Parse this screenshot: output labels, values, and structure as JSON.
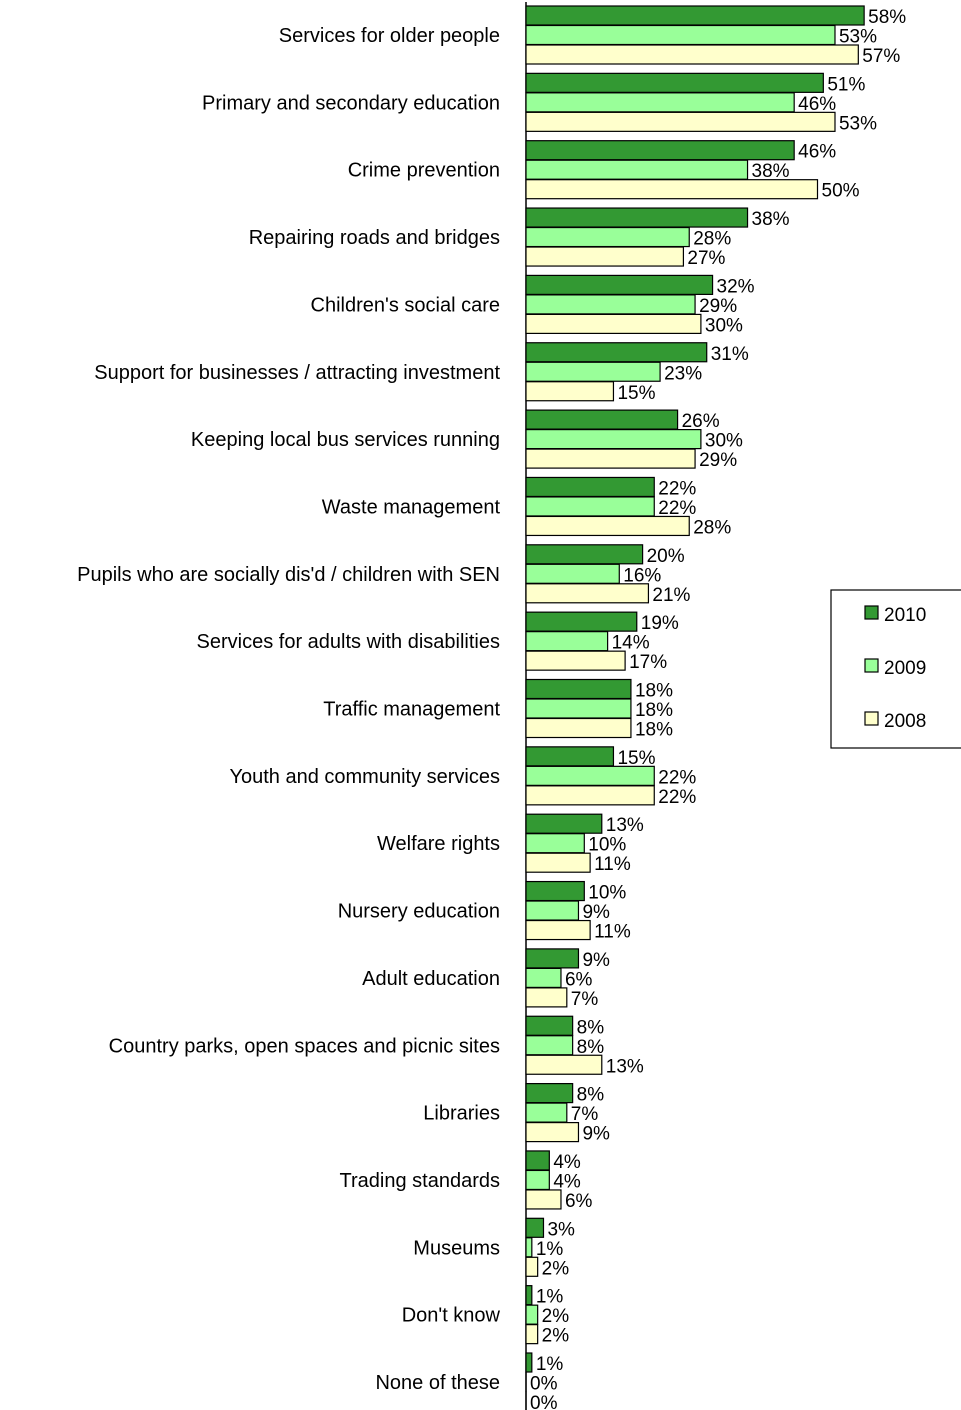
{
  "chart_data": {
    "type": "bar",
    "orientation": "horizontal",
    "categories": [
      "Services for older people",
      "Primary and  secondary education",
      "Crime prevention",
      "Repairing roads and bridges",
      "Children's social care",
      "Support for businesses / attracting  investment",
      "Keeping local bus services running",
      "Waste management",
      "Pupils who are socially dis'd / children with  SEN",
      "Services for adults with disabilities",
      "Traffic management",
      "Youth and community  services",
      "Welfare rights",
      "Nursery education",
      "Adult education",
      "Country parks, open spaces and picnic sites",
      "Libraries",
      "Trading standards",
      "Museums",
      "Don't know",
      "None of these"
    ],
    "series": [
      {
        "name": "2010",
        "color": "#339933",
        "values": [
          58,
          51,
          46,
          38,
          32,
          31,
          26,
          22,
          20,
          19,
          18,
          15,
          13,
          10,
          9,
          8,
          8,
          4,
          3,
          1,
          1
        ]
      },
      {
        "name": "2009",
        "color": "#99ff99",
        "values": [
          53,
          46,
          38,
          28,
          29,
          23,
          30,
          22,
          16,
          14,
          18,
          22,
          10,
          9,
          6,
          8,
          7,
          4,
          1,
          2,
          0
        ]
      },
      {
        "name": "2008",
        "color": "#ffffcc",
        "values": [
          57,
          53,
          50,
          27,
          30,
          15,
          29,
          28,
          21,
          17,
          18,
          22,
          11,
          11,
          7,
          13,
          9,
          6,
          2,
          2,
          0
        ]
      }
    ],
    "value_suffix": "%",
    "xlim": [
      0,
      60
    ],
    "grid": false,
    "legend": {
      "position": "right"
    }
  }
}
